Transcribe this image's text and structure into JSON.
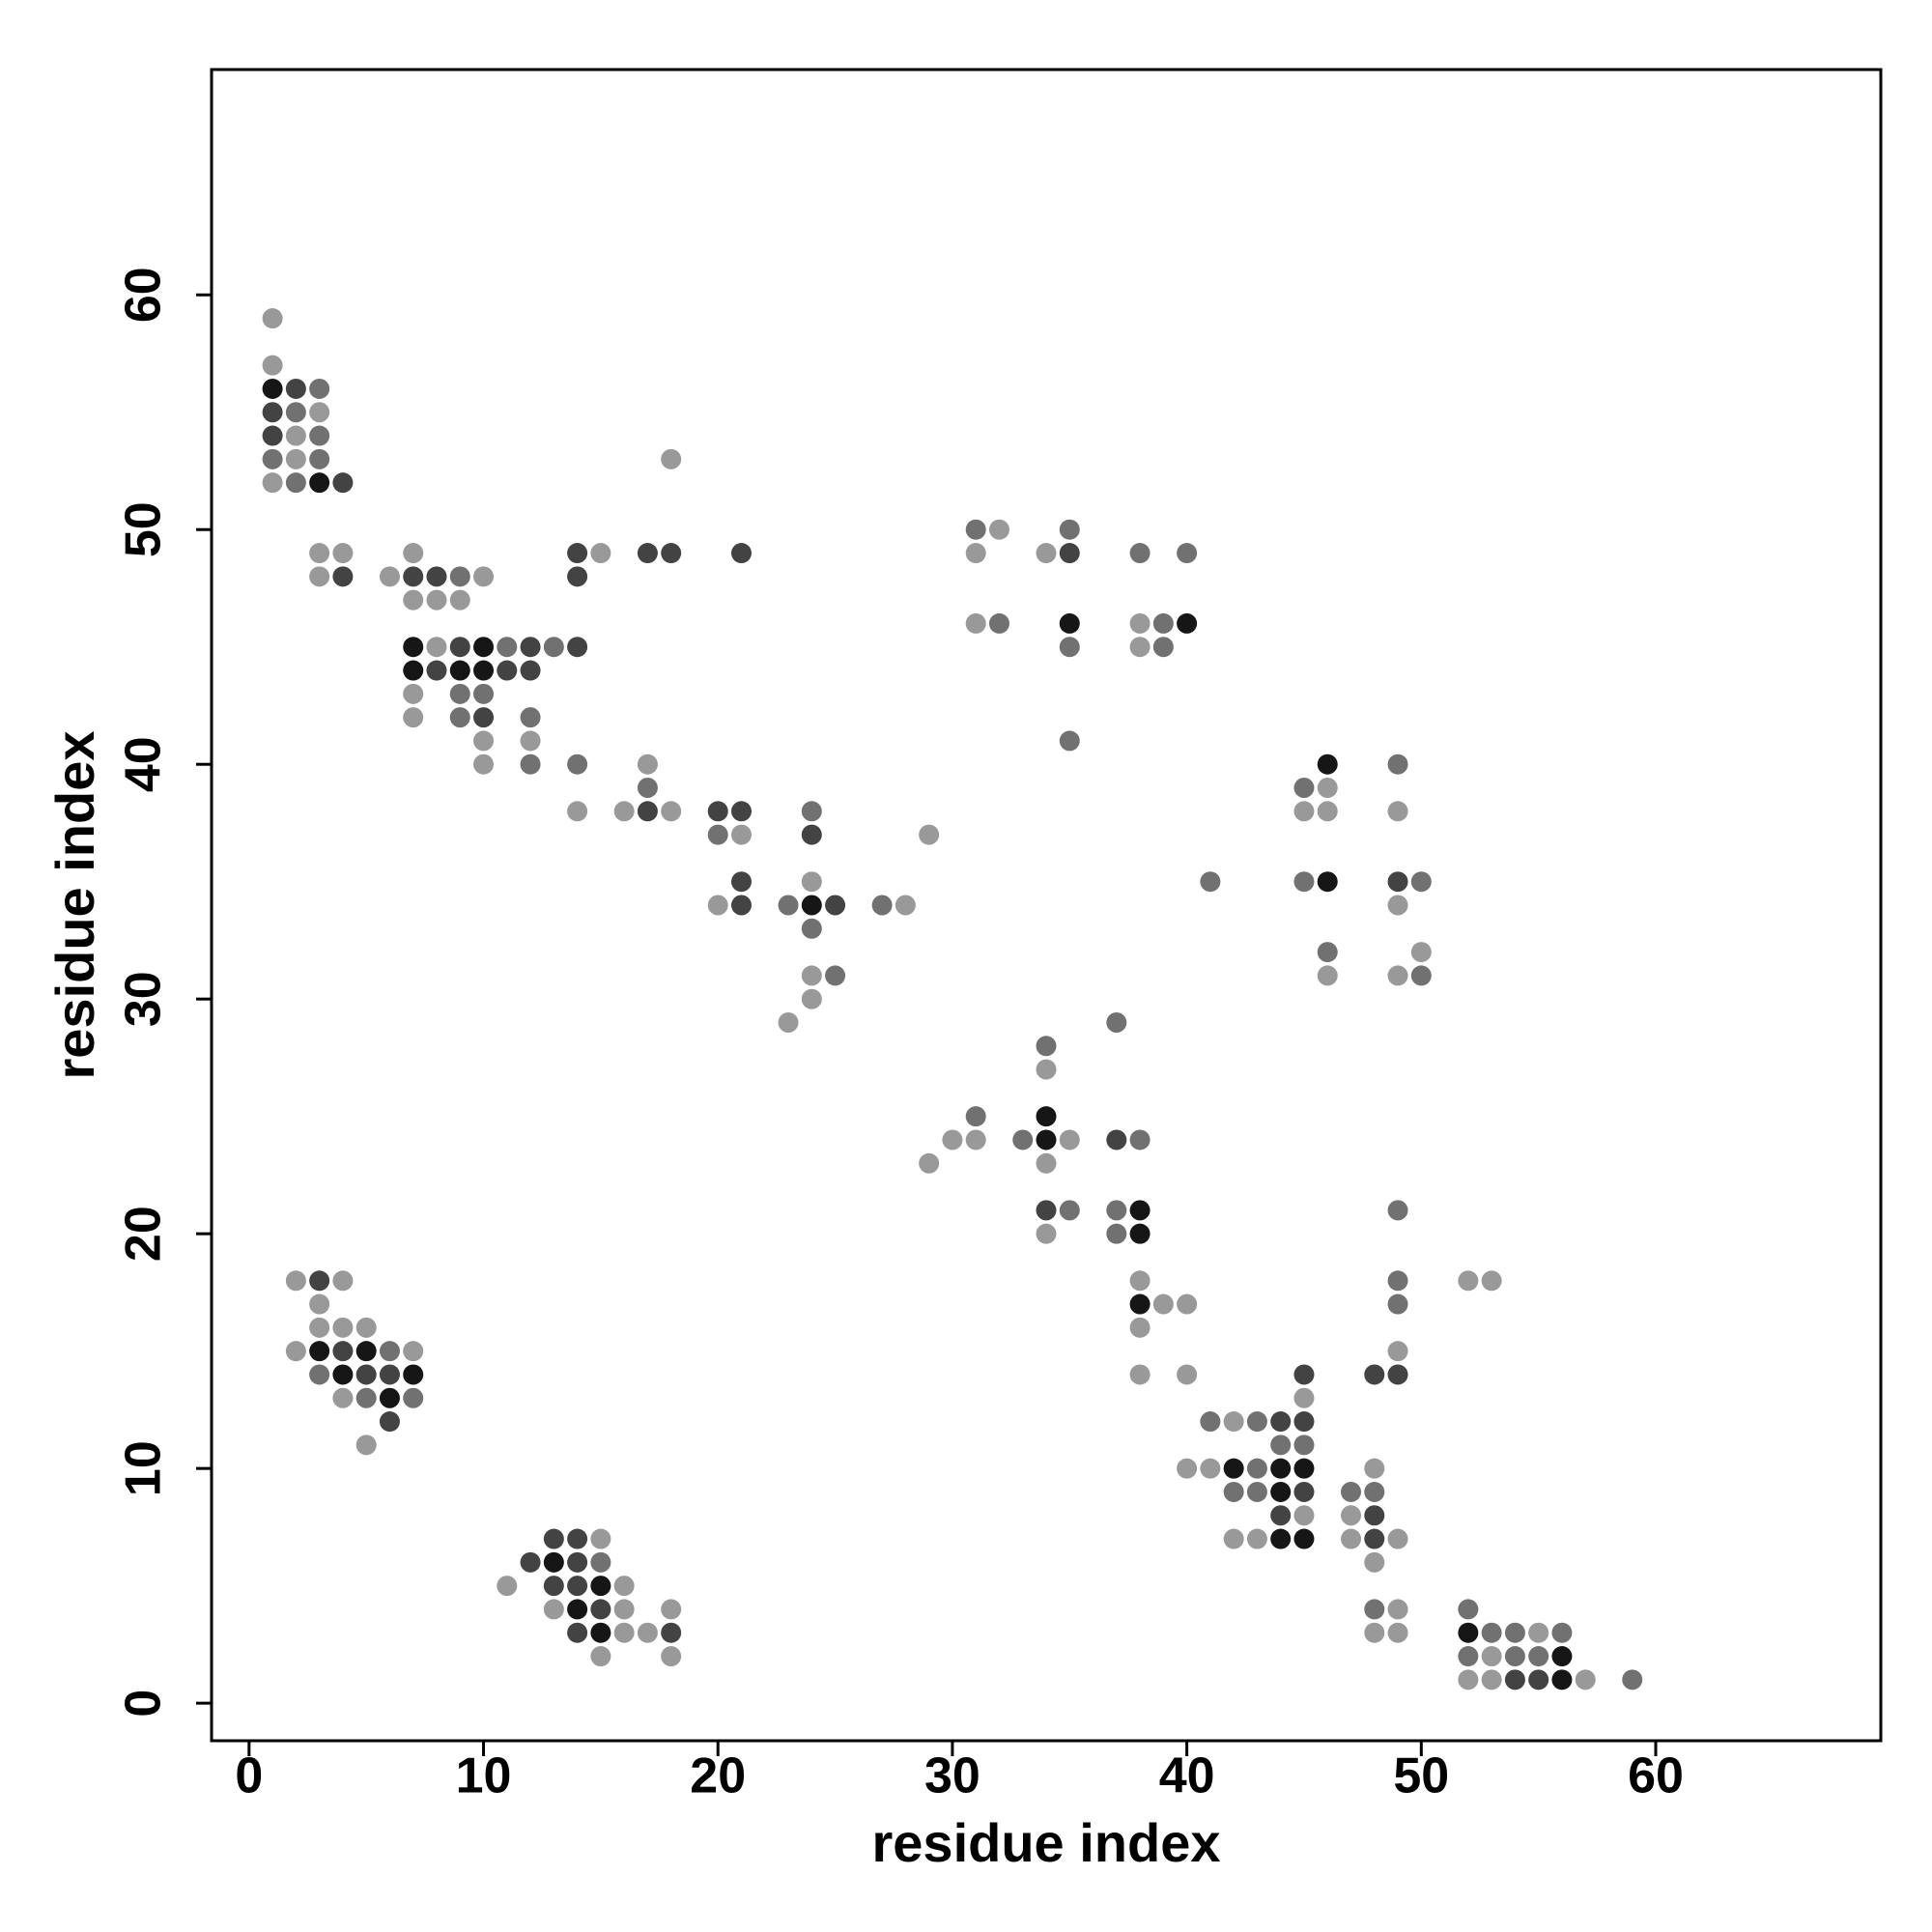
{
  "chart_data": {
    "type": "scatter",
    "xlabel": "residue index",
    "ylabel": "residue index",
    "xlim": [
      -1.6,
      69.6
    ],
    "ylim": [
      -1.6,
      69.6
    ],
    "xticks": [
      0,
      10,
      20,
      30,
      40,
      50,
      60
    ],
    "yticks": [
      0,
      10,
      20,
      30,
      40,
      50,
      60
    ],
    "series": [
      {
        "color": "#999999",
        "x": [
          1,
          1,
          3,
          2,
          2,
          18,
          1,
          32,
          3,
          4,
          7,
          15,
          31,
          34,
          3,
          6,
          10,
          7,
          8,
          9,
          31,
          38,
          8,
          38,
          7,
          7,
          10,
          12,
          10,
          17,
          46,
          14,
          16,
          18,
          45,
          46,
          49,
          21,
          29,
          24,
          20,
          28,
          49,
          50,
          24,
          46,
          49,
          24,
          23,
          34,
          30,
          31,
          35,
          29,
          34,
          34,
          2,
          4,
          38,
          52,
          53,
          3,
          39,
          40,
          3,
          4,
          5,
          38,
          2,
          7,
          49,
          38,
          40,
          4,
          45,
          42,
          5,
          40,
          41,
          48,
          45,
          47,
          15,
          42,
          43,
          47,
          49,
          48,
          11,
          16,
          13,
          16,
          18,
          49,
          16,
          17,
          48,
          49,
          55,
          15,
          18,
          53,
          52,
          53,
          57
        ],
        "values": [
          59,
          57,
          55,
          54,
          53,
          53,
          52,
          50,
          49,
          49,
          49,
          49,
          49,
          49,
          48,
          48,
          48,
          47,
          47,
          47,
          46,
          46,
          45,
          45,
          43,
          42,
          41,
          41,
          40,
          40,
          39,
          38,
          38,
          38,
          38,
          38,
          38,
          37,
          37,
          35,
          34,
          34,
          34,
          32,
          31,
          31,
          31,
          30,
          29,
          27,
          24,
          24,
          24,
          23,
          23,
          20,
          18,
          18,
          18,
          18,
          18,
          17,
          17,
          17,
          16,
          16,
          16,
          16,
          15,
          15,
          15,
          14,
          14,
          13,
          13,
          12,
          11,
          10,
          10,
          10,
          8,
          8,
          7,
          7,
          7,
          7,
          7,
          6,
          5,
          5,
          4,
          4,
          4,
          4,
          3,
          3,
          3,
          3,
          3,
          2,
          2,
          2,
          1,
          1,
          1
        ]
      },
      {
        "color": "#717171",
        "x": [
          3,
          2,
          3,
          1,
          3,
          2,
          31,
          35,
          38,
          40,
          9,
          32,
          39,
          11,
          13,
          35,
          39,
          9,
          10,
          9,
          12,
          35,
          12,
          14,
          49,
          17,
          45,
          24,
          20,
          41,
          45,
          50,
          23,
          27,
          24,
          46,
          25,
          50,
          37,
          34,
          31,
          33,
          38,
          35,
          37,
          49,
          37,
          49,
          49,
          6,
          3,
          5,
          7,
          41,
          43,
          44,
          45,
          43,
          42,
          43,
          47,
          48,
          15,
          48,
          52,
          53,
          54,
          56,
          52,
          54,
          55,
          59
        ],
        "values": [
          56,
          55,
          54,
          53,
          53,
          52,
          50,
          50,
          49,
          49,
          48,
          46,
          46,
          45,
          45,
          45,
          45,
          43,
          43,
          42,
          42,
          41,
          40,
          40,
          40,
          39,
          39,
          38,
          37,
          35,
          35,
          35,
          34,
          34,
          33,
          32,
          31,
          31,
          29,
          28,
          25,
          24,
          24,
          21,
          21,
          21,
          20,
          18,
          17,
          15,
          14,
          13,
          13,
          12,
          12,
          11,
          11,
          10,
          9,
          9,
          9,
          9,
          6,
          4,
          4,
          3,
          3,
          3,
          2,
          2,
          2,
          1
        ]
      },
      {
        "color": "#434343",
        "x": [
          2,
          1,
          1,
          4,
          14,
          17,
          18,
          21,
          35,
          4,
          7,
          8,
          14,
          9,
          12,
          14,
          8,
          11,
          12,
          10,
          17,
          20,
          21,
          24,
          21,
          49,
          21,
          25,
          37,
          34,
          3,
          4,
          5,
          6,
          45,
          48,
          49,
          6,
          44,
          45,
          45,
          44,
          48,
          13,
          14,
          48,
          12,
          14,
          13,
          14,
          15,
          14,
          18,
          54,
          55
        ],
        "values": [
          56,
          55,
          54,
          52,
          49,
          49,
          49,
          49,
          49,
          48,
          48,
          48,
          48,
          45,
          45,
          45,
          44,
          44,
          44,
          42,
          38,
          38,
          38,
          37,
          35,
          35,
          34,
          34,
          24,
          21,
          18,
          15,
          14,
          14,
          14,
          14,
          14,
          12,
          12,
          12,
          9,
          8,
          8,
          7,
          7,
          7,
          6,
          6,
          5,
          5,
          4,
          3,
          3,
          1,
          1
        ]
      },
      {
        "color": "#161616",
        "x": [
          1,
          3,
          35,
          40,
          7,
          10,
          7,
          9,
          10,
          46,
          46,
          24,
          34,
          34,
          38,
          38,
          38,
          3,
          5,
          4,
          7,
          6,
          42,
          44,
          45,
          44,
          44,
          45,
          13,
          15,
          14,
          15,
          52,
          56,
          56
        ],
        "values": [
          56,
          52,
          46,
          46,
          45,
          45,
          44,
          44,
          44,
          40,
          35,
          34,
          25,
          24,
          21,
          20,
          17,
          15,
          15,
          14,
          14,
          13,
          10,
          10,
          10,
          9,
          7,
          7,
          6,
          5,
          4,
          3,
          3,
          2,
          1
        ]
      }
    ]
  }
}
